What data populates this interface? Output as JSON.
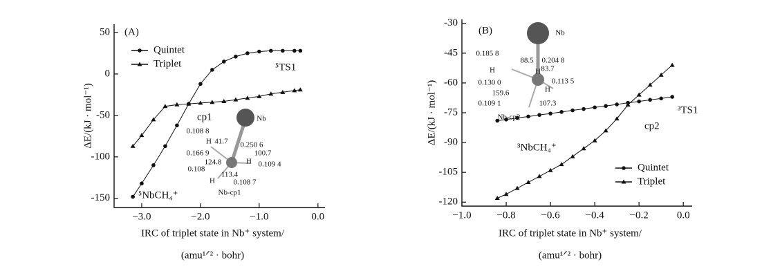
{
  "chart_data": [
    {
      "type": "line",
      "panel_label": "(A)",
      "ylabel": "ΔE/(kJ · mol⁻¹)",
      "xlabel": [
        "IRC of triplet state in Nb⁺ system/",
        "(amu¹ᐟ² · bohr)"
      ],
      "xlim": [
        -3.47,
        0.12
      ],
      "ylim": [
        -161,
        60
      ],
      "xticks": [
        {
          "value": -3,
          "label": "−3.0"
        },
        {
          "value": -2,
          "label": "−2.0"
        },
        {
          "value": -1,
          "label": "−1.0"
        },
        {
          "value": 0,
          "label": "0.0"
        }
      ],
      "yticks": [
        50,
        0,
        -50,
        -100,
        -150
      ],
      "legend": "upper left",
      "series": [
        {
          "name": "Quintet",
          "color": "#111111",
          "marker": "circle",
          "x": [
            -3.15,
            -3.0,
            -2.8,
            -2.6,
            -2.4,
            -2.2,
            -2.0,
            -1.8,
            -1.6,
            -1.4,
            -1.2,
            -1.0,
            -0.8,
            -0.6,
            -0.4,
            -0.3
          ],
          "values": [
            -148,
            -132,
            -110,
            -87,
            -62,
            -36,
            -12,
            5,
            15,
            21,
            25,
            27,
            28,
            28,
            28,
            28
          ]
        },
        {
          "name": "Triplet",
          "color": "#111111",
          "marker": "triangle",
          "x": [
            -3.15,
            -3.0,
            -2.8,
            -2.6,
            -2.4,
            -2.2,
            -2.0,
            -1.8,
            -1.6,
            -1.4,
            -1.2,
            -1.0,
            -0.8,
            -0.6,
            -0.4,
            -0.3
          ],
          "values": [
            -87,
            -74,
            -55,
            -39,
            -37,
            -36,
            -35,
            -34,
            -33,
            -31,
            -29,
            -27,
            -24,
            -22,
            -20,
            -19
          ]
        }
      ],
      "annotations": [
        "cp1",
        "⁵TS1",
        "⁵NbCH₄⁺"
      ],
      "inset_labels": [
        "Nb",
        "0.108 8",
        "H",
        "41.7",
        "0.250 6",
        "0.166 9",
        "100.7",
        "124.8",
        "H",
        "0.109 4",
        "0.108",
        "113.4",
        "H",
        "0.108 7",
        "Nb-cp1"
      ]
    },
    {
      "type": "line",
      "panel_label": "(B)",
      "ylabel": "ΔE/(kJ · mol⁻¹)",
      "xlabel": [
        "IRC of triplet state in Nb⁺ system/",
        "(amu¹ᐟ² · bohr)"
      ],
      "xlim": [
        -1.0,
        0.04
      ],
      "ylim": [
        -122,
        -28
      ],
      "xticks": [
        {
          "value": -1,
          "label": "−1.0"
        },
        {
          "value": -0.8,
          "label": "−0.8"
        },
        {
          "value": -0.6,
          "label": "−0.6"
        },
        {
          "value": -0.4,
          "label": "−0.4"
        },
        {
          "value": -0.2,
          "label": "−0.2"
        },
        {
          "value": 0,
          "label": "0.0"
        }
      ],
      "yticks": [
        -30,
        -45,
        -60,
        -75,
        -90,
        -105,
        -120
      ],
      "legend": "lower right",
      "series": [
        {
          "name": "Quintet",
          "color": "#111111",
          "marker": "circle",
          "x": [
            -0.84,
            -0.8,
            -0.75,
            -0.7,
            -0.65,
            -0.6,
            -0.55,
            -0.5,
            -0.45,
            -0.4,
            -0.35,
            -0.3,
            -0.25,
            -0.2,
            -0.15,
            -0.1,
            -0.05
          ],
          "values": [
            -79,
            -78.4,
            -77.6,
            -76.9,
            -76.1,
            -75.4,
            -74.6,
            -73.8,
            -73.1,
            -72.3,
            -71.6,
            -70.8,
            -70,
            -69.3,
            -68.5,
            -67.8,
            -67
          ]
        },
        {
          "name": "Triplet",
          "color": "#111111",
          "marker": "triangle",
          "x": [
            -0.84,
            -0.8,
            -0.75,
            -0.7,
            -0.65,
            -0.6,
            -0.55,
            -0.5,
            -0.45,
            -0.4,
            -0.35,
            -0.3,
            -0.25,
            -0.2,
            -0.15,
            -0.1,
            -0.05
          ],
          "values": [
            -118,
            -116,
            -113,
            -110,
            -107,
            -104,
            -101,
            -97,
            -93,
            -89,
            -84,
            -78,
            -71,
            -66,
            -61,
            -56,
            -51
          ]
        }
      ],
      "annotations": [
        "cp2",
        "³TS1",
        "³NbCH₄⁺"
      ],
      "inset_labels": [
        "Nb",
        "0.185 8",
        "88.5",
        "0.204 8",
        "H",
        "83.7",
        "H",
        "0.130 0",
        "0.113 5",
        "159.6",
        "H",
        "0.109 1",
        "107.3",
        "Nb-cp2"
      ]
    }
  ]
}
